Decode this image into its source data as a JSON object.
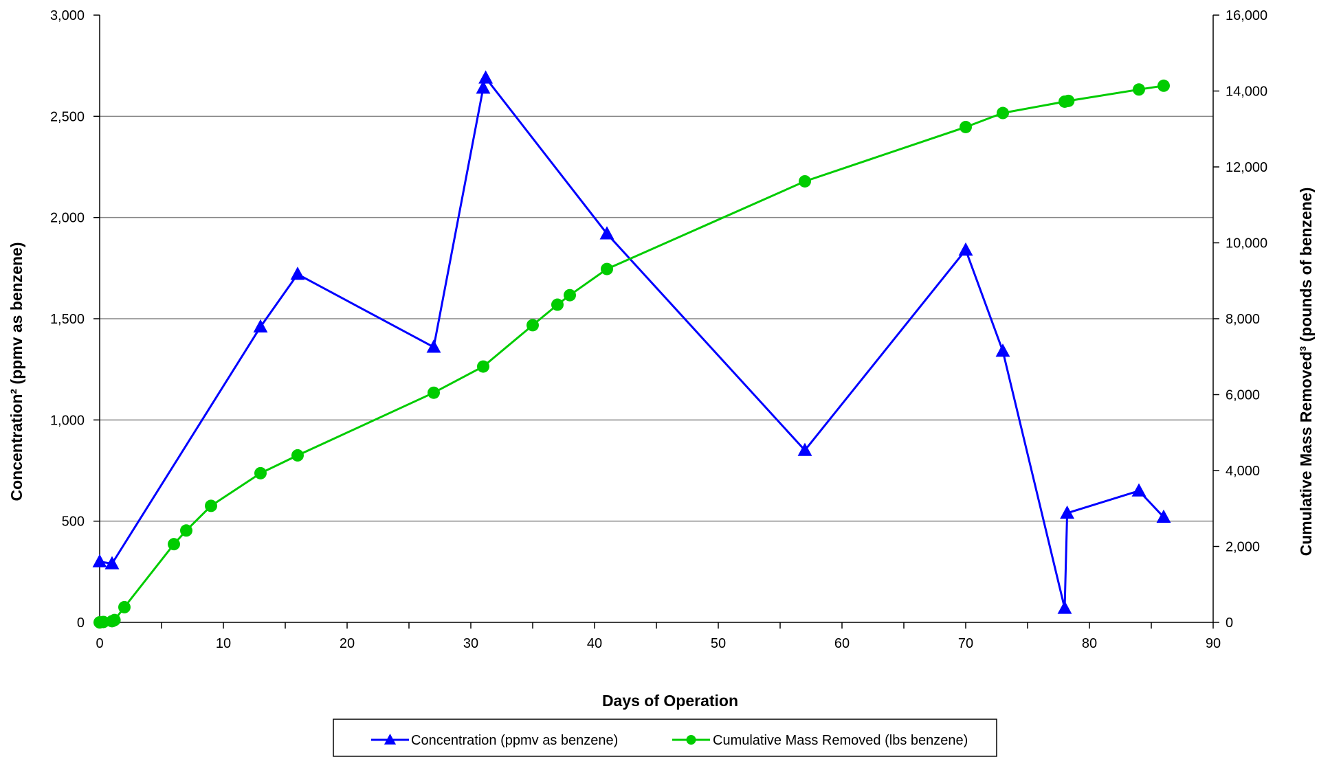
{
  "chart_data": {
    "type": "line",
    "xlabel": "Days of Operation",
    "ylabel_left": "Concentration² (ppmv as benzene)",
    "ylabel_right": "Cumulative Mass Removed³ (pounds of benzene)",
    "xlim": [
      0,
      90
    ],
    "x_ticks": [
      0,
      10,
      20,
      30,
      40,
      50,
      60,
      70,
      80,
      90
    ],
    "x_tick_labels": [
      "0",
      "10",
      "20",
      "30",
      "40",
      "50",
      "60",
      "70",
      "80",
      "90"
    ],
    "ylim_left": [
      0,
      3000
    ],
    "y_left_ticks": [
      0,
      500,
      1000,
      1500,
      2000,
      2500,
      3000
    ],
    "y_left_tick_labels": [
      "0",
      "500",
      "1,000",
      "1,500",
      "2,000",
      "2,500",
      "3,000"
    ],
    "ylim_right": [
      0,
      16000
    ],
    "y_right_ticks": [
      0,
      2000,
      4000,
      6000,
      8000,
      10000,
      12000,
      14000,
      16000
    ],
    "y_right_tick_labels": [
      "0",
      "2,000",
      "4,000",
      "6,000",
      "8,000",
      "10,000",
      "12,000",
      "14,000",
      "16,000"
    ],
    "grid": "horizontal",
    "legend_position": "bottom",
    "series": [
      {
        "name": "Concentration (ppmv as benzene)",
        "axis": "left",
        "color": "#0000ff",
        "marker": "triangle",
        "x": [
          0,
          1,
          13,
          16,
          27,
          31,
          31.2,
          41,
          57,
          70,
          73,
          78,
          78.2,
          84,
          86
        ],
        "y": [
          300,
          290,
          1460,
          1720,
          1360,
          2640,
          2690,
          1920,
          850,
          1840,
          1340,
          70,
          540,
          650,
          520
        ]
      },
      {
        "name": "Cumulative Mass Removed (lbs benzene)",
        "axis": "right",
        "color": "#00cc00",
        "marker": "circle",
        "x": [
          0,
          0.3,
          1,
          1.2,
          2,
          6,
          7,
          9,
          13,
          16,
          27,
          31,
          35,
          37,
          38,
          41,
          57,
          70,
          73,
          78,
          78.3,
          84,
          86
        ],
        "y": [
          0,
          10,
          30,
          60,
          400,
          2060,
          2420,
          3070,
          3930,
          4400,
          6050,
          6740,
          7830,
          8370,
          8620,
          9310,
          11620,
          13050,
          13420,
          13720,
          13740,
          14040,
          14140
        ]
      }
    ]
  }
}
